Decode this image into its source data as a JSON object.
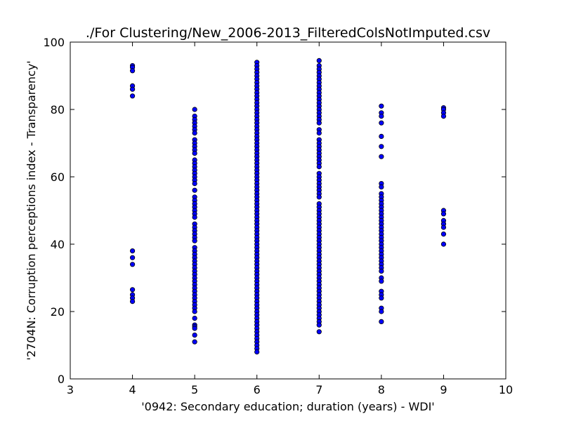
{
  "chart_data": {
    "type": "scatter",
    "title": "./For Clustering/New_2006-2013_FilteredColsNotImputed.csv",
    "xlabel": "'0942: Secondary education; duration  (years) - WDI'",
    "ylabel": "'2704N: Corruption perceptions index - Transparency'",
    "xlim": [
      3,
      10
    ],
    "ylim": [
      0,
      100
    ],
    "xticks": [
      "3",
      "4",
      "5",
      "6",
      "7",
      "8",
      "9",
      "10"
    ],
    "yticks": [
      "0",
      "20",
      "40",
      "60",
      "80",
      "100"
    ],
    "grid": false,
    "legend": "none",
    "marker_color": "#0000ff",
    "series": [
      {
        "x": 4,
        "values": [
          93,
          92.5,
          91.5,
          87,
          86,
          84,
          38,
          36,
          34,
          26.5,
          25,
          24,
          23
        ]
      },
      {
        "x": 5,
        "values": [
          80,
          78,
          77,
          76,
          75,
          74,
          73,
          71,
          70,
          69,
          68,
          67,
          65,
          64,
          63,
          62,
          61,
          60,
          59,
          58,
          56,
          54,
          53,
          52,
          51,
          50,
          49,
          48,
          46,
          45,
          44,
          43,
          42,
          41,
          39,
          38,
          37,
          36,
          35,
          34,
          33,
          32,
          31,
          30,
          29,
          28,
          27,
          26,
          25,
          24,
          23,
          22,
          21,
          20,
          18,
          16,
          15.5,
          15,
          13,
          11
        ]
      },
      {
        "x": 6,
        "values": [
          94,
          93,
          92,
          91,
          90,
          89,
          88,
          87,
          86,
          85,
          84,
          83,
          82,
          81,
          80,
          79,
          78,
          77,
          76,
          75,
          74,
          73,
          72,
          71,
          70,
          69,
          68,
          67,
          66,
          65,
          64,
          63,
          62,
          61,
          60,
          59,
          58,
          57,
          56,
          55,
          54,
          53,
          52,
          51,
          50,
          49,
          48,
          47,
          46,
          45,
          44,
          43,
          42,
          41,
          40,
          39,
          38,
          37,
          36,
          35,
          34,
          33,
          32,
          31,
          30,
          29,
          28,
          27,
          26,
          25,
          24,
          23,
          22,
          21,
          20,
          19,
          18,
          17,
          16,
          15,
          14,
          13,
          12,
          11,
          10,
          9,
          8
        ]
      },
      {
        "x": 7,
        "values": [
          94.5,
          93,
          92,
          91,
          90,
          89,
          88,
          87,
          86,
          85,
          84,
          83,
          82,
          81,
          80,
          79,
          78,
          77,
          76,
          74,
          73,
          71,
          70,
          69,
          68,
          67,
          66,
          65,
          64,
          63,
          61,
          60,
          59,
          58,
          57,
          56,
          55,
          54,
          52,
          51,
          50,
          49,
          48,
          47,
          46,
          45,
          44,
          43,
          42,
          41,
          40,
          39,
          38,
          37,
          36,
          35,
          34,
          33,
          32,
          31,
          30,
          29,
          28,
          27,
          26,
          25,
          24,
          23,
          22,
          21,
          20,
          19,
          18,
          17,
          16,
          14
        ]
      },
      {
        "x": 8,
        "values": [
          81,
          79,
          78,
          76,
          72,
          69,
          66,
          58,
          57,
          55,
          54,
          53,
          52,
          51,
          50,
          49,
          48,
          47,
          46,
          45,
          44,
          43,
          42,
          41,
          40,
          39,
          38,
          37,
          36,
          35,
          34,
          33,
          32,
          30,
          29,
          26,
          25,
          24,
          21,
          20,
          17
        ]
      },
      {
        "x": 9,
        "values": [
          80.5,
          80,
          79,
          78,
          50,
          49,
          47,
          46,
          45,
          43,
          40
        ]
      }
    ]
  }
}
